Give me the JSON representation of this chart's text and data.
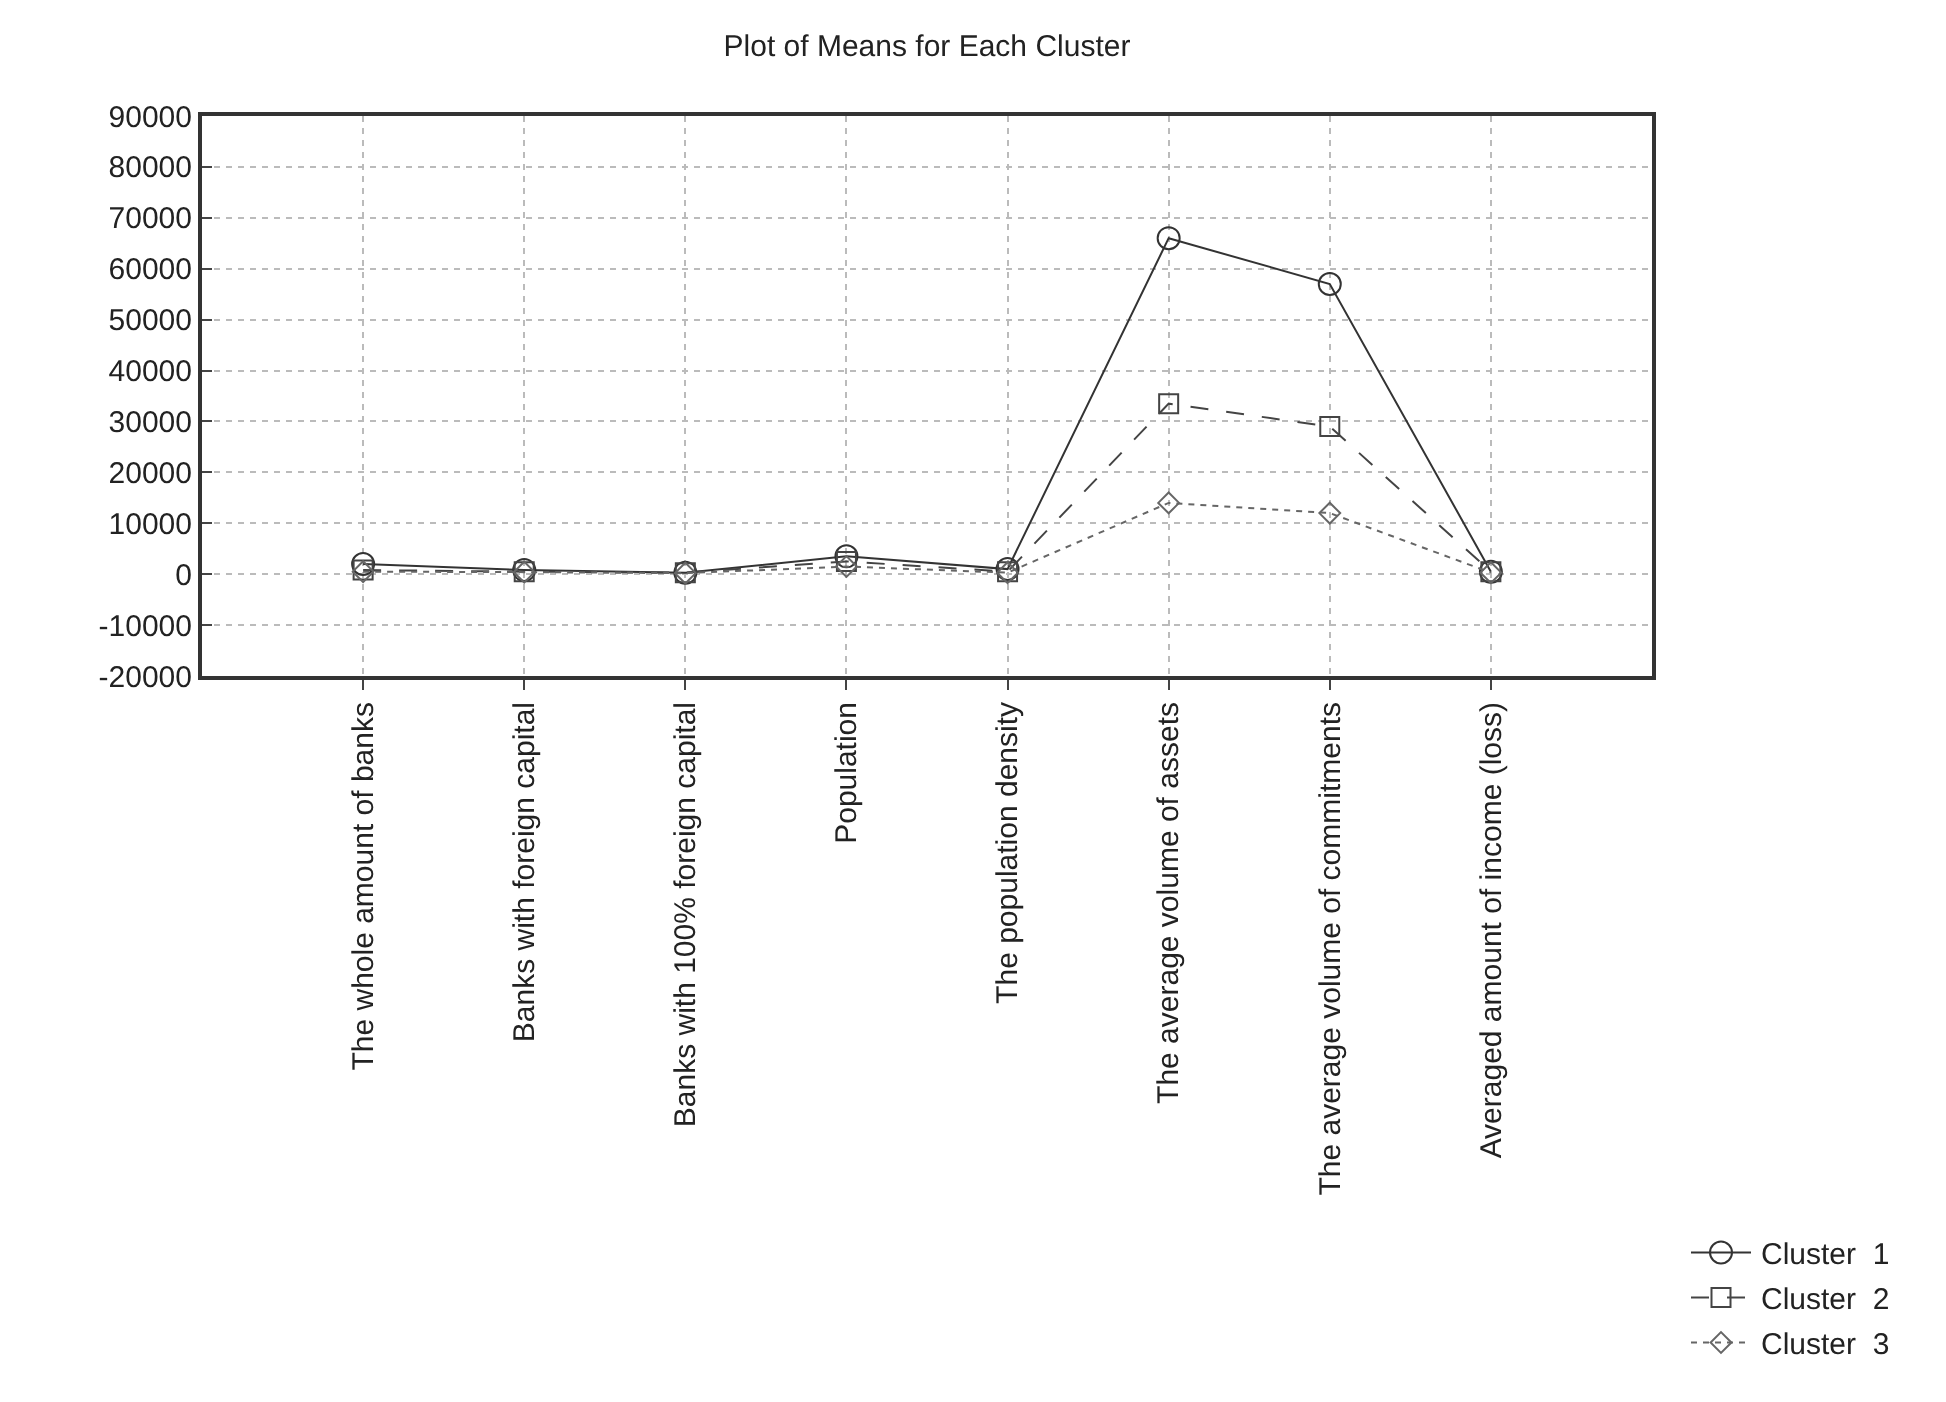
{
  "chart_data": {
    "type": "line",
    "title": "Plot of Means for Each Cluster",
    "categories": [
      "The whole amount of banks",
      "Banks with foreign capital",
      "Banks with 100% foreign capital",
      "Population",
      "The population density",
      "The average volume of assets",
      "The average volume of commitments",
      "Averaged amount of income (loss)"
    ],
    "series": [
      {
        "name": "Cluster  1",
        "color": "#333333",
        "marker": "circle",
        "line_style": "solid",
        "values": [
          2000,
          800,
          300,
          3500,
          1000,
          66000,
          57000,
          500
        ]
      },
      {
        "name": "Cluster  2",
        "color": "#444444",
        "marker": "square",
        "line_style": "dashed",
        "values": [
          800,
          500,
          300,
          2500,
          500,
          33500,
          29000,
          500
        ]
      },
      {
        "name": "Cluster  3",
        "color": "#666666",
        "marker": "diamond",
        "line_style": "dotted",
        "values": [
          500,
          400,
          200,
          1500,
          300,
          14000,
          12000,
          300
        ]
      }
    ],
    "ylim": [
      -20000,
      90000
    ],
    "yticks": [
      -20000,
      -10000,
      0,
      10000,
      20000,
      30000,
      40000,
      50000,
      60000,
      70000,
      80000,
      90000
    ],
    "grid": true,
    "legend": "bottom right"
  }
}
